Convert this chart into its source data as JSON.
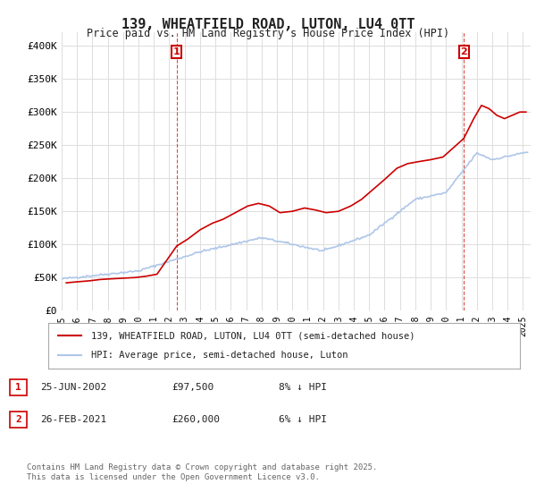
{
  "title": "139, WHEATFIELD ROAD, LUTON, LU4 0TT",
  "subtitle": "Price paid vs. HM Land Registry's House Price Index (HPI)",
  "ylabel_ticks": [
    "£0",
    "£50K",
    "£100K",
    "£150K",
    "£200K",
    "£250K",
    "£300K",
    "£350K",
    "£400K"
  ],
  "ytick_values": [
    0,
    50000,
    100000,
    150000,
    200000,
    250000,
    300000,
    350000,
    400000
  ],
  "ylim": [
    0,
    420000
  ],
  "xlim_start": 1995.0,
  "xlim_end": 2025.5,
  "hpi_color": "#aec6e8",
  "price_color": "#cc0000",
  "marker1_x": 2002.48,
  "marker1_y": 97500,
  "marker2_x": 2021.15,
  "marker2_y": 260000,
  "legend_price_label": "139, WHEATFIELD ROAD, LUTON, LU4 0TT (semi-detached house)",
  "legend_hpi_label": "HPI: Average price, semi-detached house, Luton",
  "annotation1_label": "1",
  "annotation2_label": "2",
  "table_row1": [
    "1",
    "25-JUN-2002",
    "£97,500",
    "8% ↓ HPI"
  ],
  "table_row2": [
    "2",
    "26-FEB-2021",
    "£260,000",
    "6% ↓ HPI"
  ],
  "footer": "Contains HM Land Registry data © Crown copyright and database right 2025.\nThis data is licensed under the Open Government Licence v3.0.",
  "background_color": "#ffffff",
  "grid_color": "#dddddd",
  "xtick_years": [
    1995,
    1996,
    1997,
    1998,
    1999,
    2000,
    2001,
    2002,
    2003,
    2004,
    2005,
    2006,
    2007,
    2008,
    2009,
    2010,
    2011,
    2012,
    2013,
    2014,
    2015,
    2016,
    2017,
    2018,
    2019,
    2020,
    2021,
    2022,
    2023,
    2024,
    2025
  ]
}
